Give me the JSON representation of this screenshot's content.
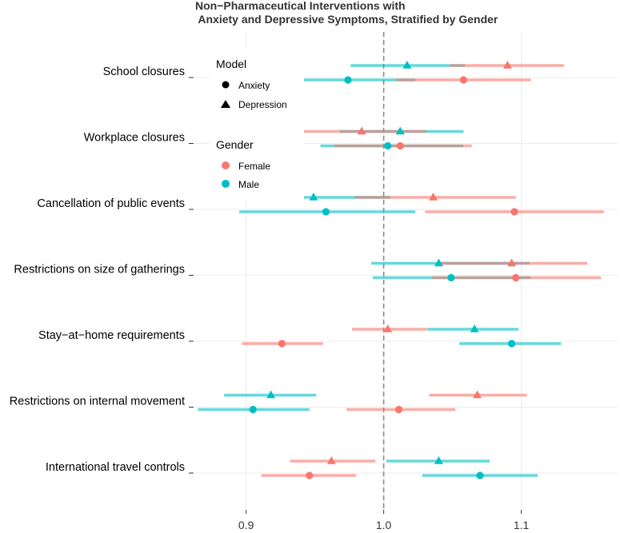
{
  "chart_data": {
    "type": "forest",
    "title_line1": "Non−Pharmaceutical Interventions with",
    "title_line2": " Anxiety and Depressive Symptoms, Stratified by Gender",
    "xlabel": "",
    "ylabel": "",
    "xlim": [
      0.863,
      1.17
    ],
    "x_ticks": [
      0.9,
      1.0,
      1.1
    ],
    "x_tick_labels": [
      "0.9",
      "1.0",
      "1.1"
    ],
    "reference_line": 1.0,
    "grid": true,
    "legend_position": "top-left inside",
    "colors": {
      "Female": "#f8766d",
      "Male": "#00bfc4"
    },
    "legend": {
      "model_title": "Model",
      "model_items": [
        {
          "label": "Anxiety",
          "shape": "circle"
        },
        {
          "label": "Depression",
          "shape": "triangle"
        }
      ],
      "gender_title": "Gender",
      "gender_items": [
        {
          "label": "Female",
          "color": "#f8766d"
        },
        {
          "label": "Male",
          "color": "#00bfc4"
        }
      ]
    },
    "categories": [
      "School closures",
      "Workplace closures",
      "Cancellation of public events",
      "Restrictions on size of gatherings",
      "Stay−at−home requirements",
      "Restrictions on internal movement",
      "International travel controls"
    ],
    "series": [
      {
        "gender": "Male",
        "model": "Depression",
        "estimates": [
          {
            "category": "School closures",
            "est": 1.017,
            "lo": 0.976,
            "hi": 1.059
          },
          {
            "category": "Workplace closures",
            "est": 1.012,
            "lo": 0.968,
            "hi": 1.058
          },
          {
            "category": "Cancellation of public events",
            "est": 0.949,
            "lo": 0.912,
            "hi": 1.005
          },
          {
            "category": "Restrictions on size of gatherings",
            "est": 1.04,
            "lo": 0.991,
            "hi": 1.106
          },
          {
            "category": "Stay−at−home requirements",
            "est": 1.066,
            "lo": 1.032,
            "hi": 1.098
          },
          {
            "category": "Restrictions on internal movement",
            "est": 0.918,
            "lo": 0.884,
            "hi": 0.951
          },
          {
            "category": "International travel controls",
            "est": 1.04,
            "lo": 1.002,
            "hi": 1.077
          }
        ]
      },
      {
        "gender": "Female",
        "model": "Depression",
        "estimates": [
          {
            "category": "School closures",
            "est": 1.09,
            "lo": 1.048,
            "hi": 1.131
          },
          {
            "category": "Workplace closures",
            "est": 0.984,
            "lo": 0.941,
            "hi": 1.031
          },
          {
            "category": "Cancellation of public events",
            "est": 1.036,
            "lo": 0.979,
            "hi": 1.096
          },
          {
            "category": "Restrictions on size of gatherings",
            "est": 1.093,
            "lo": 1.041,
            "hi": 1.148
          },
          {
            "category": "Stay−at−home requirements",
            "est": 1.003,
            "lo": 0.977,
            "hi": 1.032
          },
          {
            "category": "Restrictions on internal movement",
            "est": 1.068,
            "lo": 1.033,
            "hi": 1.104
          },
          {
            "category": "International travel controls",
            "est": 0.962,
            "lo": 0.932,
            "hi": 0.994
          }
        ]
      },
      {
        "gender": "Male",
        "model": "Anxiety",
        "estimates": [
          {
            "category": "School closures",
            "est": 0.974,
            "lo": 0.928,
            "hi": 1.023
          },
          {
            "category": "Workplace closures",
            "est": 1.003,
            "lo": 0.954,
            "hi": 1.058
          },
          {
            "category": "Cancellation of public events",
            "est": 0.958,
            "lo": 0.895,
            "hi": 1.023
          },
          {
            "category": "Restrictions on size of gatherings",
            "est": 1.049,
            "lo": 0.992,
            "hi": 1.107
          },
          {
            "category": "Stay−at−home requirements",
            "est": 1.093,
            "lo": 1.055,
            "hi": 1.129
          },
          {
            "category": "Restrictions on internal movement",
            "est": 0.905,
            "lo": 0.865,
            "hi": 0.946
          },
          {
            "category": "International travel controls",
            "est": 1.07,
            "lo": 1.028,
            "hi": 1.112
          }
        ]
      },
      {
        "gender": "Female",
        "model": "Anxiety",
        "estimates": [
          {
            "category": "School closures",
            "est": 1.058,
            "lo": 1.009,
            "hi": 1.107
          },
          {
            "category": "Workplace closures",
            "est": 1.012,
            "lo": 0.964,
            "hi": 1.064
          },
          {
            "category": "Cancellation of public events",
            "est": 1.095,
            "lo": 1.03,
            "hi": 1.16
          },
          {
            "category": "Restrictions on size of gatherings",
            "est": 1.096,
            "lo": 1.035,
            "hi": 1.158
          },
          {
            "category": "Stay−at−home requirements",
            "est": 0.926,
            "lo": 0.897,
            "hi": 0.956
          },
          {
            "category": "Restrictions on internal movement",
            "est": 1.011,
            "lo": 0.973,
            "hi": 1.052
          },
          {
            "category": "International travel controls",
            "est": 0.946,
            "lo": 0.911,
            "hi": 0.98
          }
        ]
      }
    ]
  }
}
